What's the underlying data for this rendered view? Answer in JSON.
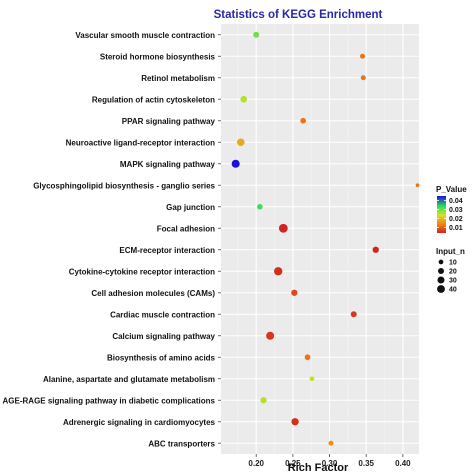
{
  "chart_data": {
    "type": "scatter",
    "title": "Statistics of KEGG Enrichment",
    "xlabel": "Rich Factor",
    "ylabel": "",
    "xlim": [
      0.152,
      0.422
    ],
    "xticks": [
      0.2,
      0.25,
      0.3,
      0.35,
      0.4
    ],
    "xtick_labels": [
      "0.20",
      "0.25",
      "0.30",
      "0.35",
      "0.40"
    ],
    "grid": true,
    "background": "#ebebeb",
    "pathways": [
      "Vascular smooth muscle contraction",
      "Steroid hormone biosynthesis",
      "Retinol metabolism",
      "Regulation of actin cytoskeleton",
      "PPAR signaling pathway",
      "Neuroactive ligand-receptor interaction",
      "MAPK signaling pathway",
      "Glycosphingolipid biosynthesis - ganglio series",
      "Gap junction",
      "Focal adhesion",
      "ECM-receptor interaction",
      "Cytokine-cytokine receptor interaction",
      "Cell adhesion molecules (CAMs)",
      "Cardiac muscle contraction",
      "Calcium signaling pathway",
      "Biosynthesis of amino acids",
      "Alanine, aspartate and glutamate metabolism",
      "AGE-RAGE signaling pathway in diabetic complications",
      "Adrenergic signaling in cardiomyocytes",
      "ABC transporters"
    ],
    "points": [
      {
        "rich_factor": 0.2,
        "p_value": 0.03,
        "input_n": 10
      },
      {
        "rich_factor": 0.345,
        "p_value": 0.012,
        "input_n": 6
      },
      {
        "rich_factor": 0.346,
        "p_value": 0.012,
        "input_n": 6
      },
      {
        "rich_factor": 0.183,
        "p_value": 0.026,
        "input_n": 14
      },
      {
        "rich_factor": 0.264,
        "p_value": 0.012,
        "input_n": 9
      },
      {
        "rich_factor": 0.179,
        "p_value": 0.018,
        "input_n": 20
      },
      {
        "rich_factor": 0.172,
        "p_value": 0.045,
        "input_n": 24
      },
      {
        "rich_factor": 0.42,
        "p_value": 0.012,
        "input_n": 2
      },
      {
        "rich_factor": 0.205,
        "p_value": 0.033,
        "input_n": 8
      },
      {
        "rich_factor": 0.237,
        "p_value": 0.004,
        "input_n": 30
      },
      {
        "rich_factor": 0.363,
        "p_value": 0.004,
        "input_n": 12
      },
      {
        "rich_factor": 0.23,
        "p_value": 0.005,
        "input_n": 26
      },
      {
        "rich_factor": 0.252,
        "p_value": 0.008,
        "input_n": 12
      },
      {
        "rich_factor": 0.333,
        "p_value": 0.006,
        "input_n": 10
      },
      {
        "rich_factor": 0.219,
        "p_value": 0.006,
        "input_n": 24
      },
      {
        "rich_factor": 0.27,
        "p_value": 0.012,
        "input_n": 9
      },
      {
        "rich_factor": 0.276,
        "p_value": 0.025,
        "input_n": 5
      },
      {
        "rich_factor": 0.21,
        "p_value": 0.026,
        "input_n": 12
      },
      {
        "rich_factor": 0.253,
        "p_value": 0.005,
        "input_n": 18
      },
      {
        "rich_factor": 0.302,
        "p_value": 0.015,
        "input_n": 6
      }
    ],
    "color_legend": {
      "title": "P_Value",
      "range": [
        0.004,
        0.045
      ],
      "ticks": [
        0.04,
        0.03,
        0.02,
        0.01
      ],
      "tick_labels": [
        "0.04",
        "0.03",
        "0.02",
        "0.01"
      ],
      "colors_high_to_low": [
        "#1a14d2",
        "#2dde5c",
        "#d8e020",
        "#ef7d14",
        "#d22222"
      ]
    },
    "size_legend": {
      "title": "Input_n",
      "values": [
        10,
        20,
        30,
        40
      ],
      "labels": [
        "10",
        "20",
        "30",
        "40"
      ]
    }
  }
}
